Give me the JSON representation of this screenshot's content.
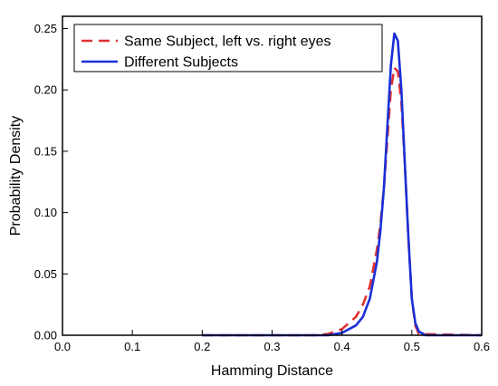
{
  "chart_data": {
    "type": "line",
    "xlabel": "Hamming Distance",
    "ylabel": "Probability Density",
    "xlim": [
      0.0,
      0.6
    ],
    "ylim": [
      0.0,
      0.26
    ],
    "x_ticks": [
      "0.0",
      "0.1",
      "0.2",
      "0.3",
      "0.4",
      "0.5",
      "0.6"
    ],
    "y_ticks": [
      "0.00",
      "0.05",
      "0.10",
      "0.15",
      "0.20",
      "0.25"
    ],
    "grid": false,
    "legend_position": "top-left",
    "series": [
      {
        "name": "Same Subject, left vs. right eyes",
        "color": "#e03030",
        "dash": "dashed",
        "x": [
          0.2,
          0.36,
          0.38,
          0.4,
          0.42,
          0.43,
          0.44,
          0.45,
          0.455,
          0.46,
          0.465,
          0.47,
          0.475,
          0.48,
          0.485,
          0.49,
          0.495,
          0.5,
          0.505,
          0.51,
          0.6
        ],
        "y": [
          0.0,
          0.0,
          0.001,
          0.005,
          0.015,
          0.025,
          0.04,
          0.07,
          0.09,
          0.12,
          0.16,
          0.2,
          0.218,
          0.215,
          0.19,
          0.14,
          0.08,
          0.03,
          0.008,
          0.001,
          0.0
        ]
      },
      {
        "name": "Different Subjects",
        "color": "#1a2fd6",
        "dash": "solid",
        "x": [
          0.2,
          0.38,
          0.4,
          0.42,
          0.43,
          0.44,
          0.45,
          0.455,
          0.46,
          0.465,
          0.47,
          0.475,
          0.48,
          0.485,
          0.49,
          0.495,
          0.5,
          0.505,
          0.51,
          0.52,
          0.6
        ],
        "y": [
          0.0,
          0.0,
          0.002,
          0.008,
          0.015,
          0.03,
          0.06,
          0.085,
          0.12,
          0.17,
          0.22,
          0.246,
          0.24,
          0.2,
          0.14,
          0.08,
          0.03,
          0.01,
          0.003,
          0.0,
          0.0
        ]
      }
    ]
  }
}
